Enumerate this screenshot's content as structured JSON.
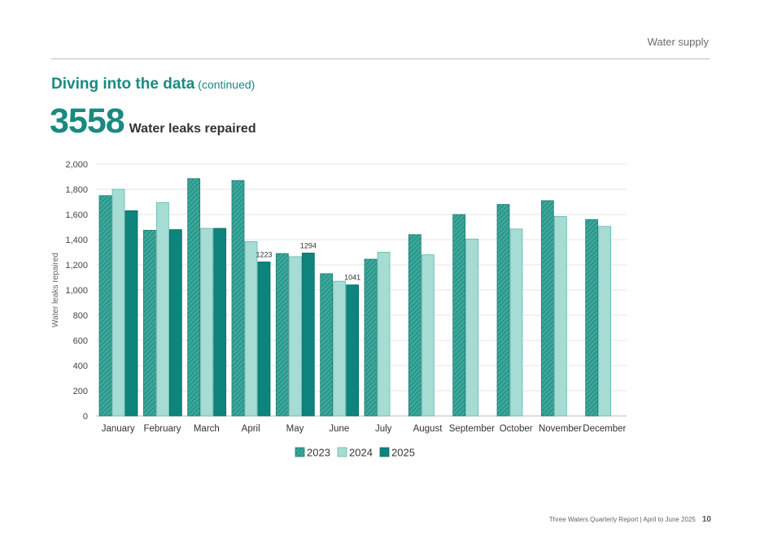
{
  "header": {
    "section": "Water supply"
  },
  "heading": {
    "title": "Diving into the data",
    "subtitle": "(continued)"
  },
  "stat": {
    "value": "3558",
    "label": "Water leaks repaired"
  },
  "footer": {
    "report": "Three Waters Quarterly Report | April to June 2025",
    "page": "10"
  },
  "colors": {
    "y2023": "#3ba89c",
    "y2024": "#a6dcd3",
    "y2025": "#0d847c",
    "accent": "#1a8a80"
  },
  "chart_data": {
    "type": "bar",
    "ylabel": "Water leaks repaired",
    "xlabel": "",
    "ylim": [
      0,
      2000
    ],
    "yticks": [
      0,
      200,
      400,
      600,
      800,
      1000,
      1200,
      1400,
      1600,
      1800,
      2000
    ],
    "ytick_labels": [
      "0",
      "200",
      "400",
      "600",
      "800",
      "1,000",
      "1,200",
      "1,400",
      "1,600",
      "1,800",
      "2,000"
    ],
    "grid": true,
    "legend": "bottom",
    "categories": [
      "January",
      "February",
      "March",
      "April",
      "May",
      "June",
      "July",
      "August",
      "September",
      "October",
      "November",
      "December"
    ],
    "series": [
      {
        "name": "2023",
        "pattern": "hatched",
        "values": [
          1750,
          1475,
          1885,
          1870,
          1290,
          1130,
          1245,
          1440,
          1600,
          1680,
          1710,
          1560
        ]
      },
      {
        "name": "2024",
        "pattern": "solid",
        "values": [
          1800,
          1695,
          1490,
          1385,
          1265,
          1070,
          1300,
          1280,
          1405,
          1485,
          1585,
          1505
        ]
      },
      {
        "name": "2025",
        "pattern": "solid",
        "values": [
          1630,
          1480,
          1490,
          1223,
          1294,
          1041,
          null,
          null,
          null,
          null,
          null,
          null
        ]
      }
    ],
    "data_labels": [
      {
        "series": "2025",
        "category": "April",
        "text": "1223"
      },
      {
        "series": "2025",
        "category": "May",
        "text": "1294"
      },
      {
        "series": "2025",
        "category": "June",
        "text": "1041"
      }
    ]
  }
}
